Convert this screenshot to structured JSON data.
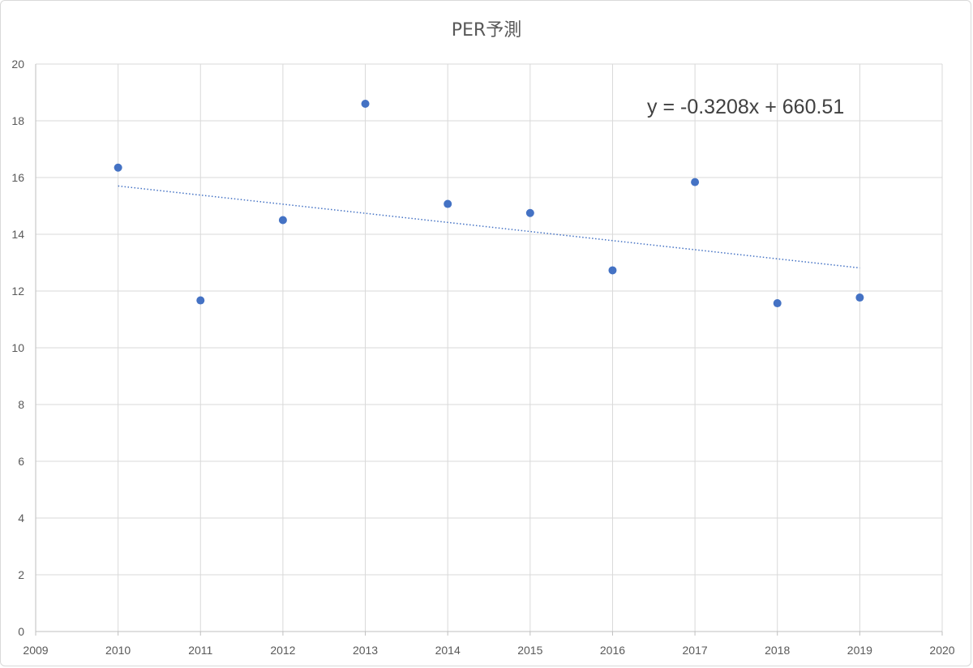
{
  "chart_data": {
    "type": "scatter",
    "title": "PER予測",
    "xlabel": "",
    "ylabel": "",
    "xlim": [
      2009,
      2020
    ],
    "ylim": [
      0,
      20
    ],
    "x_ticks": [
      2009,
      2010,
      2011,
      2012,
      2013,
      2014,
      2015,
      2016,
      2017,
      2018,
      2019,
      2020
    ],
    "y_ticks": [
      0,
      2,
      4,
      6,
      8,
      10,
      12,
      14,
      16,
      18,
      20
    ],
    "grid": true,
    "legend": "none",
    "series": [
      {
        "color": "#4472c4",
        "points": [
          {
            "x": 2010,
            "y": 16.35
          },
          {
            "x": 2011,
            "y": 11.67
          },
          {
            "x": 2012,
            "y": 14.5
          },
          {
            "x": 2013,
            "y": 18.6
          },
          {
            "x": 2014,
            "y": 15.07
          },
          {
            "x": 2015,
            "y": 14.75
          },
          {
            "x": 2016,
            "y": 12.73
          },
          {
            "x": 2017,
            "y": 15.84
          },
          {
            "x": 2018,
            "y": 11.57
          },
          {
            "x": 2019,
            "y": 11.77
          }
        ]
      }
    ],
    "trendline": {
      "type": "linear",
      "slope": -0.3208,
      "intercept": 660.51,
      "x_range": [
        2010,
        2019
      ],
      "equation": "y = -0.3208x + 660.51",
      "style": "dotted",
      "color": "#4472c4"
    }
  }
}
